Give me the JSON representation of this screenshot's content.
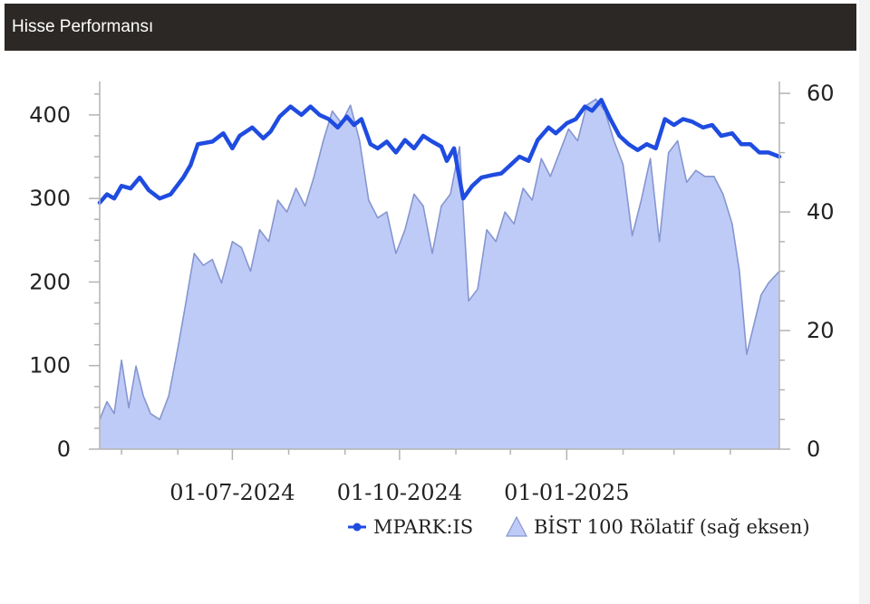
{
  "panel": {
    "title": "Hisse Performansı"
  },
  "colors": {
    "header_bg": "#2b2825",
    "line": "#1f4ce0",
    "area_fill": "#bfcbf7",
    "area_stroke": "#8596d0",
    "axis": "#b3b3b3"
  },
  "chart_data": {
    "type": "line",
    "x_tick_labels": [
      "01-07-2024",
      "01-10-2024",
      "01-01-2025"
    ],
    "x_ticks": [
      "2024-07-01",
      "2024-10-01",
      "2025-01-01"
    ],
    "x_range": [
      "2024-04-19",
      "2025-04-28"
    ],
    "y_left": {
      "ticks": [
        0,
        100,
        200,
        300,
        400
      ],
      "range": [
        0,
        440
      ]
    },
    "y_right": {
      "ticks": [
        0,
        20,
        40,
        60
      ],
      "range": [
        0,
        62
      ]
    },
    "legend_position": "bottom-right",
    "series": [
      {
        "name": "MPARK:IS",
        "type": "line",
        "axis": "left",
        "points": [
          [
            "2024-04-19",
            295
          ],
          [
            "2024-04-23",
            305
          ],
          [
            "2024-04-27",
            300
          ],
          [
            "2024-05-01",
            315
          ],
          [
            "2024-05-06",
            312
          ],
          [
            "2024-05-11",
            325
          ],
          [
            "2024-05-16",
            310
          ],
          [
            "2024-05-22",
            300
          ],
          [
            "2024-05-28",
            305
          ],
          [
            "2024-06-04",
            325
          ],
          [
            "2024-06-08",
            340
          ],
          [
            "2024-06-12",
            365
          ],
          [
            "2024-06-20",
            368
          ],
          [
            "2024-06-26",
            378
          ],
          [
            "2024-07-01",
            360
          ],
          [
            "2024-07-05",
            375
          ],
          [
            "2024-07-12",
            385
          ],
          [
            "2024-07-18",
            372
          ],
          [
            "2024-07-22",
            380
          ],
          [
            "2024-07-27",
            398
          ],
          [
            "2024-08-02",
            410
          ],
          [
            "2024-08-08",
            400
          ],
          [
            "2024-08-13",
            410
          ],
          [
            "2024-08-18",
            400
          ],
          [
            "2024-08-23",
            395
          ],
          [
            "2024-08-28",
            385
          ],
          [
            "2024-09-02",
            398
          ],
          [
            "2024-09-06",
            388
          ],
          [
            "2024-09-10",
            395
          ],
          [
            "2024-09-15",
            365
          ],
          [
            "2024-09-19",
            360
          ],
          [
            "2024-09-24",
            368
          ],
          [
            "2024-09-29",
            355
          ],
          [
            "2024-10-04",
            370
          ],
          [
            "2024-10-09",
            360
          ],
          [
            "2024-10-14",
            375
          ],
          [
            "2024-10-19",
            368
          ],
          [
            "2024-10-24",
            362
          ],
          [
            "2024-10-27",
            345
          ],
          [
            "2024-10-31",
            360
          ],
          [
            "2024-11-05",
            300
          ],
          [
            "2024-11-10",
            315
          ],
          [
            "2024-11-15",
            325
          ],
          [
            "2024-11-21",
            328
          ],
          [
            "2024-11-26",
            330
          ],
          [
            "2024-12-01",
            340
          ],
          [
            "2024-12-06",
            350
          ],
          [
            "2024-12-11",
            345
          ],
          [
            "2024-12-16",
            370
          ],
          [
            "2024-12-22",
            385
          ],
          [
            "2024-12-26",
            378
          ],
          [
            "2025-01-01",
            390
          ],
          [
            "2025-01-06",
            395
          ],
          [
            "2025-01-11",
            410
          ],
          [
            "2025-01-15",
            405
          ],
          [
            "2025-01-20",
            418
          ],
          [
            "2025-01-25",
            395
          ],
          [
            "2025-01-30",
            375
          ],
          [
            "2025-02-04",
            365
          ],
          [
            "2025-02-09",
            358
          ],
          [
            "2025-02-14",
            365
          ],
          [
            "2025-02-19",
            360
          ],
          [
            "2025-02-24",
            395
          ],
          [
            "2025-03-01",
            388
          ],
          [
            "2025-03-06",
            395
          ],
          [
            "2025-03-11",
            392
          ],
          [
            "2025-03-17",
            385
          ],
          [
            "2025-03-22",
            388
          ],
          [
            "2025-03-27",
            375
          ],
          [
            "2025-04-02",
            378
          ],
          [
            "2025-04-07",
            365
          ],
          [
            "2025-04-12",
            365
          ],
          [
            "2025-04-17",
            355
          ],
          [
            "2025-04-22",
            355
          ],
          [
            "2025-04-28",
            350
          ]
        ]
      },
      {
        "name": "BİST 100 Rölatif (sağ eksen)",
        "type": "area",
        "axis": "right",
        "points": [
          [
            "2024-04-19",
            5
          ],
          [
            "2024-04-23",
            8
          ],
          [
            "2024-04-27",
            6
          ],
          [
            "2024-05-01",
            15
          ],
          [
            "2024-05-05",
            7
          ],
          [
            "2024-05-09",
            14
          ],
          [
            "2024-05-13",
            9
          ],
          [
            "2024-05-17",
            6
          ],
          [
            "2024-05-22",
            5
          ],
          [
            "2024-05-27",
            9
          ],
          [
            "2024-06-01",
            17
          ],
          [
            "2024-06-05",
            24
          ],
          [
            "2024-06-10",
            33
          ],
          [
            "2024-06-15",
            31
          ],
          [
            "2024-06-20",
            32
          ],
          [
            "2024-06-25",
            28
          ],
          [
            "2024-07-01",
            35
          ],
          [
            "2024-07-06",
            34
          ],
          [
            "2024-07-11",
            30
          ],
          [
            "2024-07-16",
            37
          ],
          [
            "2024-07-21",
            35
          ],
          [
            "2024-07-26",
            42
          ],
          [
            "2024-07-31",
            40
          ],
          [
            "2024-08-05",
            44
          ],
          [
            "2024-08-10",
            41
          ],
          [
            "2024-08-15",
            46
          ],
          [
            "2024-08-20",
            52
          ],
          [
            "2024-08-25",
            57
          ],
          [
            "2024-08-30",
            55
          ],
          [
            "2024-09-04",
            58
          ],
          [
            "2024-09-09",
            52
          ],
          [
            "2024-09-14",
            42
          ],
          [
            "2024-09-19",
            39
          ],
          [
            "2024-09-24",
            40
          ],
          [
            "2024-09-29",
            33
          ],
          [
            "2024-10-04",
            37
          ],
          [
            "2024-10-09",
            43
          ],
          [
            "2024-10-14",
            41
          ],
          [
            "2024-10-19",
            33
          ],
          [
            "2024-10-24",
            41
          ],
          [
            "2024-10-29",
            43
          ],
          [
            "2024-11-03",
            51
          ],
          [
            "2024-11-08",
            25
          ],
          [
            "2024-11-13",
            27
          ],
          [
            "2024-11-18",
            37
          ],
          [
            "2024-11-23",
            35
          ],
          [
            "2024-11-28",
            40
          ],
          [
            "2024-12-03",
            38
          ],
          [
            "2024-12-08",
            44
          ],
          [
            "2024-12-13",
            42
          ],
          [
            "2024-12-18",
            49
          ],
          [
            "2024-12-23",
            46
          ],
          [
            "2024-12-28",
            50
          ],
          [
            "2025-01-02",
            54
          ],
          [
            "2025-01-07",
            52
          ],
          [
            "2025-01-12",
            58
          ],
          [
            "2025-01-17",
            59
          ],
          [
            "2025-01-22",
            57
          ],
          [
            "2025-01-27",
            52
          ],
          [
            "2025-02-01",
            48
          ],
          [
            "2025-02-06",
            36
          ],
          [
            "2025-02-11",
            42
          ],
          [
            "2025-02-16",
            49
          ],
          [
            "2025-02-21",
            35
          ],
          [
            "2025-02-26",
            50
          ],
          [
            "2025-03-03",
            52
          ],
          [
            "2025-03-08",
            45
          ],
          [
            "2025-03-13",
            47
          ],
          [
            "2025-03-18",
            46
          ],
          [
            "2025-03-23",
            46
          ],
          [
            "2025-03-28",
            43
          ],
          [
            "2025-04-02",
            38
          ],
          [
            "2025-04-06",
            30
          ],
          [
            "2025-04-10",
            16
          ],
          [
            "2025-04-14",
            21
          ],
          [
            "2025-04-18",
            26
          ],
          [
            "2025-04-22",
            28
          ],
          [
            "2025-04-28",
            30
          ]
        ]
      }
    ]
  }
}
